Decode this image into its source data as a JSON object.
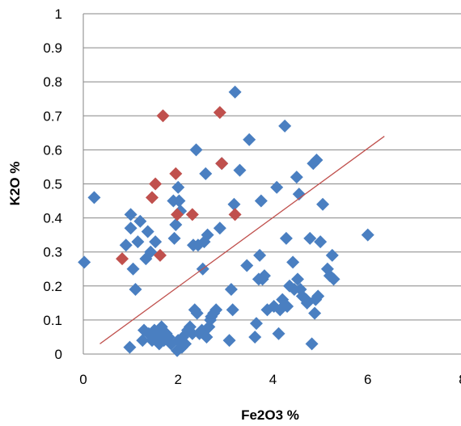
{
  "chart_data": {
    "type": "scatter",
    "xlabel": "Fe2O3 %",
    "ylabel": "K2O %",
    "xlim": [
      0,
      8
    ],
    "ylim": [
      0,
      1
    ],
    "x_ticks": [
      "0",
      "2",
      "4",
      "6",
      "8"
    ],
    "y_ticks": [
      "0",
      "0.1",
      "0.2",
      "0.3",
      "0.4",
      "0.5",
      "0.6",
      "0.7",
      "0.8",
      "0.9",
      "1"
    ],
    "grid": "horizontal",
    "legend": "none",
    "colors": {
      "blue": "#4a7fc1",
      "red": "#c0504d",
      "line": "#c0504d",
      "grid": "#868686"
    },
    "series": [
      {
        "color": "blue",
        "points": [
          [
            0.02,
            0.27
          ],
          [
            0.23,
            0.46
          ],
          [
            0.9,
            0.32
          ],
          [
            0.98,
            0.02
          ],
          [
            1.0,
            0.41
          ],
          [
            1.0,
            0.37
          ],
          [
            1.05,
            0.25
          ],
          [
            1.1,
            0.19
          ],
          [
            1.15,
            0.33
          ],
          [
            1.2,
            0.39
          ],
          [
            1.25,
            0.04
          ],
          [
            1.28,
            0.07
          ],
          [
            1.32,
            0.28
          ],
          [
            1.36,
            0.36
          ],
          [
            1.38,
            0.06
          ],
          [
            1.42,
            0.3
          ],
          [
            1.45,
            0.04
          ],
          [
            1.5,
            0.07
          ],
          [
            1.52,
            0.33
          ],
          [
            1.55,
            0.05
          ],
          [
            1.6,
            0.03
          ],
          [
            1.62,
            0.06
          ],
          [
            1.65,
            0.08
          ],
          [
            1.7,
            0.04
          ],
          [
            1.75,
            0.06
          ],
          [
            1.8,
            0.05
          ],
          [
            1.85,
            0.03
          ],
          [
            1.9,
            0.45
          ],
          [
            1.92,
            0.34
          ],
          [
            1.95,
            0.38
          ],
          [
            1.98,
            0.01
          ],
          [
            2.0,
            0.04
          ],
          [
            2.0,
            0.49
          ],
          [
            2.02,
            0.45
          ],
          [
            2.05,
            0.42
          ],
          [
            2.08,
            0.02
          ],
          [
            2.1,
            0.05
          ],
          [
            2.15,
            0.03
          ],
          [
            2.2,
            0.07
          ],
          [
            2.25,
            0.08
          ],
          [
            2.3,
            0.06
          ],
          [
            2.32,
            0.32
          ],
          [
            2.35,
            0.13
          ],
          [
            2.38,
            0.6
          ],
          [
            2.4,
            0.12
          ],
          [
            2.42,
            0.32
          ],
          [
            2.45,
            0.06
          ],
          [
            2.5,
            0.07
          ],
          [
            2.52,
            0.25
          ],
          [
            2.55,
            0.33
          ],
          [
            2.58,
            0.53
          ],
          [
            2.6,
            0.05
          ],
          [
            2.62,
            0.35
          ],
          [
            2.65,
            0.08
          ],
          [
            2.68,
            0.1
          ],
          [
            2.7,
            0.11
          ],
          [
            2.75,
            0.12
          ],
          [
            2.8,
            0.13
          ],
          [
            2.88,
            0.37
          ],
          [
            2.92,
            0.56
          ],
          [
            3.08,
            0.04
          ],
          [
            3.12,
            0.19
          ],
          [
            3.15,
            0.13
          ],
          [
            3.18,
            0.44
          ],
          [
            3.2,
            0.77
          ],
          [
            3.3,
            0.54
          ],
          [
            3.45,
            0.26
          ],
          [
            3.5,
            0.63
          ],
          [
            3.62,
            0.05
          ],
          [
            3.65,
            0.09
          ],
          [
            3.7,
            0.22
          ],
          [
            3.72,
            0.29
          ],
          [
            3.75,
            0.45
          ],
          [
            3.78,
            0.22
          ],
          [
            3.82,
            0.23
          ],
          [
            3.88,
            0.13
          ],
          [
            4.02,
            0.14
          ],
          [
            4.08,
            0.49
          ],
          [
            4.12,
            0.06
          ],
          [
            4.15,
            0.13
          ],
          [
            4.2,
            0.16
          ],
          [
            4.25,
            0.67
          ],
          [
            4.28,
            0.34
          ],
          [
            4.3,
            0.14
          ],
          [
            4.35,
            0.2
          ],
          [
            4.42,
            0.27
          ],
          [
            4.45,
            0.19
          ],
          [
            4.5,
            0.52
          ],
          [
            4.52,
            0.22
          ],
          [
            4.55,
            0.47
          ],
          [
            4.58,
            0.19
          ],
          [
            4.62,
            0.17
          ],
          [
            4.7,
            0.16
          ],
          [
            4.72,
            0.15
          ],
          [
            4.78,
            0.34
          ],
          [
            4.82,
            0.03
          ],
          [
            4.85,
            0.56
          ],
          [
            4.88,
            0.12
          ],
          [
            4.9,
            0.16
          ],
          [
            4.92,
            0.57
          ],
          [
            4.95,
            0.17
          ],
          [
            5.0,
            0.33
          ],
          [
            5.05,
            0.44
          ],
          [
            5.15,
            0.25
          ],
          [
            5.2,
            0.23
          ],
          [
            5.25,
            0.29
          ],
          [
            5.28,
            0.22
          ],
          [
            6.0,
            0.35
          ]
        ]
      },
      {
        "color": "red",
        "points": [
          [
            0.82,
            0.28
          ],
          [
            1.45,
            0.46
          ],
          [
            1.52,
            0.5
          ],
          [
            1.62,
            0.29
          ],
          [
            1.68,
            0.7
          ],
          [
            1.95,
            0.53
          ],
          [
            1.98,
            0.41
          ],
          [
            2.3,
            0.41
          ],
          [
            2.88,
            0.71
          ],
          [
            2.92,
            0.56
          ],
          [
            3.2,
            0.41
          ]
        ]
      }
    ],
    "trendline": [
      [
        0.35,
        0.03
      ],
      [
        6.35,
        0.64
      ]
    ]
  }
}
